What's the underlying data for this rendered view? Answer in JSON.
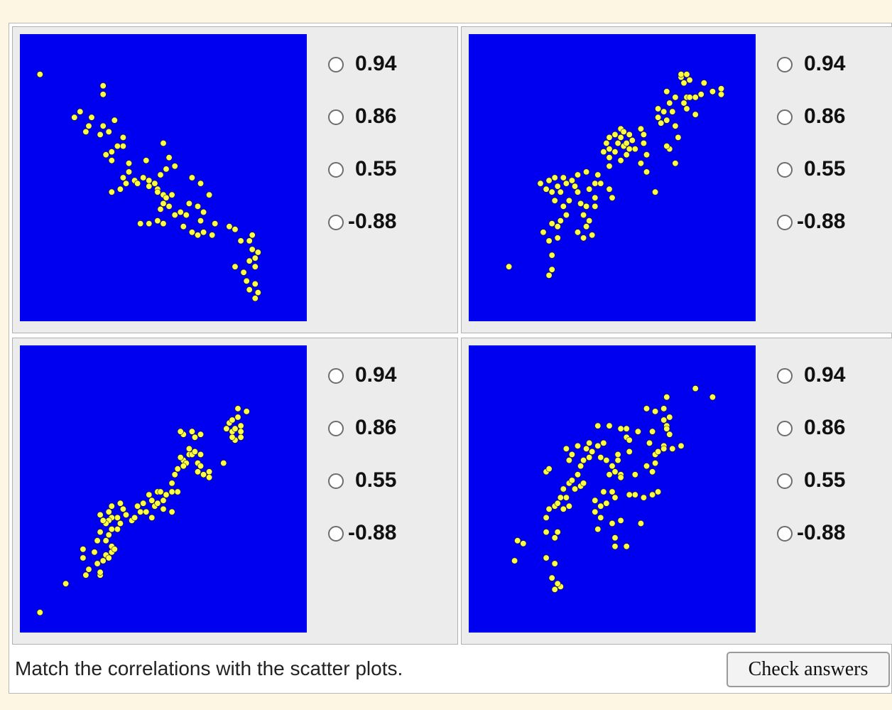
{
  "instructions": "Match the correlations with the scatter plots.",
  "check_button_label": "Check answers",
  "colors": {
    "plot_background": "#0000f0",
    "point_fill": "#ffff44",
    "point_stroke": "#222222"
  },
  "options": [
    "0.94",
    "0.86",
    "0.55",
    "-0.88"
  ],
  "chart_data": [
    {
      "type": "scatter",
      "points": [
        [
          0.07,
          0.86
        ],
        [
          0.29,
          0.82
        ],
        [
          0.29,
          0.79
        ],
        [
          0.21,
          0.73
        ],
        [
          0.19,
          0.71
        ],
        [
          0.25,
          0.71
        ],
        [
          0.29,
          0.68
        ],
        [
          0.33,
          0.7
        ],
        [
          0.24,
          0.68
        ],
        [
          0.31,
          0.66
        ],
        [
          0.28,
          0.65
        ],
        [
          0.23,
          0.66
        ],
        [
          0.36,
          0.64
        ],
        [
          0.36,
          0.61
        ],
        [
          0.34,
          0.61
        ],
        [
          0.32,
          0.59
        ],
        [
          0.5,
          0.62
        ],
        [
          0.3,
          0.58
        ],
        [
          0.32,
          0.56
        ],
        [
          0.38,
          0.55
        ],
        [
          0.44,
          0.56
        ],
        [
          0.52,
          0.57
        ],
        [
          0.54,
          0.54
        ],
        [
          0.51,
          0.53
        ],
        [
          0.36,
          0.5
        ],
        [
          0.43,
          0.5
        ],
        [
          0.38,
          0.52
        ],
        [
          0.4,
          0.49
        ],
        [
          0.37,
          0.48
        ],
        [
          0.41,
          0.48
        ],
        [
          0.45,
          0.49
        ],
        [
          0.47,
          0.48
        ],
        [
          0.49,
          0.51
        ],
        [
          0.45,
          0.47
        ],
        [
          0.48,
          0.46
        ],
        [
          0.6,
          0.5
        ],
        [
          0.63,
          0.48
        ],
        [
          0.32,
          0.45
        ],
        [
          0.35,
          0.46
        ],
        [
          0.5,
          0.44
        ],
        [
          0.48,
          0.45
        ],
        [
          0.51,
          0.43
        ],
        [
          0.53,
          0.44
        ],
        [
          0.5,
          0.41
        ],
        [
          0.52,
          0.4
        ],
        [
          0.49,
          0.39
        ],
        [
          0.54,
          0.37
        ],
        [
          0.56,
          0.38
        ],
        [
          0.58,
          0.37
        ],
        [
          0.59,
          0.41
        ],
        [
          0.62,
          0.4
        ],
        [
          0.63,
          0.35
        ],
        [
          0.66,
          0.44
        ],
        [
          0.64,
          0.38
        ],
        [
          0.48,
          0.35
        ],
        [
          0.42,
          0.34
        ],
        [
          0.45,
          0.34
        ],
        [
          0.5,
          0.34
        ],
        [
          0.57,
          0.33
        ],
        [
          0.6,
          0.31
        ],
        [
          0.64,
          0.31
        ],
        [
          0.62,
          0.3
        ],
        [
          0.67,
          0.3
        ],
        [
          0.68,
          0.34
        ],
        [
          0.73,
          0.33
        ],
        [
          0.75,
          0.32
        ],
        [
          0.77,
          0.28
        ],
        [
          0.81,
          0.3
        ],
        [
          0.8,
          0.28
        ],
        [
          0.81,
          0.25
        ],
        [
          0.8,
          0.21
        ],
        [
          0.82,
          0.19
        ],
        [
          0.82,
          0.22
        ],
        [
          0.83,
          0.24
        ],
        [
          0.75,
          0.19
        ],
        [
          0.78,
          0.17
        ],
        [
          0.79,
          0.14
        ],
        [
          0.8,
          0.11
        ],
        [
          0.82,
          0.13
        ],
        [
          0.83,
          0.1
        ],
        [
          0.82,
          0.08
        ]
      ]
    },
    {
      "type": "scatter",
      "points": [
        [
          0.14,
          0.19
        ],
        [
          0.28,
          0.16
        ],
        [
          0.29,
          0.18
        ],
        [
          0.29,
          0.23
        ],
        [
          0.28,
          0.28
        ],
        [
          0.31,
          0.29
        ],
        [
          0.26,
          0.31
        ],
        [
          0.29,
          0.34
        ],
        [
          0.32,
          0.35
        ],
        [
          0.31,
          0.33
        ],
        [
          0.34,
          0.37
        ],
        [
          0.33,
          0.4
        ],
        [
          0.35,
          0.42
        ],
        [
          0.3,
          0.42
        ],
        [
          0.29,
          0.45
        ],
        [
          0.32,
          0.45
        ],
        [
          0.27,
          0.46
        ],
        [
          0.31,
          0.47
        ],
        [
          0.34,
          0.48
        ],
        [
          0.37,
          0.47
        ],
        [
          0.38,
          0.45
        ],
        [
          0.39,
          0.41
        ],
        [
          0.41,
          0.4
        ],
        [
          0.4,
          0.37
        ],
        [
          0.41,
          0.33
        ],
        [
          0.38,
          0.31
        ],
        [
          0.4,
          0.29
        ],
        [
          0.43,
          0.3
        ],
        [
          0.42,
          0.35
        ],
        [
          0.44,
          0.4
        ],
        [
          0.44,
          0.43
        ],
        [
          0.42,
          0.46
        ],
        [
          0.44,
          0.48
        ],
        [
          0.45,
          0.51
        ],
        [
          0.41,
          0.52
        ],
        [
          0.38,
          0.51
        ],
        [
          0.36,
          0.49
        ],
        [
          0.33,
          0.5
        ],
        [
          0.3,
          0.5
        ],
        [
          0.28,
          0.49
        ],
        [
          0.25,
          0.48
        ],
        [
          0.46,
          0.48
        ],
        [
          0.49,
          0.46
        ],
        [
          0.5,
          0.43
        ],
        [
          0.49,
          0.54
        ],
        [
          0.49,
          0.57
        ],
        [
          0.51,
          0.59
        ],
        [
          0.49,
          0.6
        ],
        [
          0.52,
          0.62
        ],
        [
          0.54,
          0.61
        ],
        [
          0.53,
          0.64
        ],
        [
          0.55,
          0.62
        ],
        [
          0.56,
          0.65
        ],
        [
          0.57,
          0.63
        ],
        [
          0.56,
          0.6
        ],
        [
          0.55,
          0.58
        ],
        [
          0.53,
          0.56
        ],
        [
          0.47,
          0.59
        ],
        [
          0.48,
          0.62
        ],
        [
          0.49,
          0.64
        ],
        [
          0.51,
          0.65
        ],
        [
          0.53,
          0.67
        ],
        [
          0.54,
          0.66
        ],
        [
          0.58,
          0.6
        ],
        [
          0.61,
          0.62
        ],
        [
          0.61,
          0.65
        ],
        [
          0.6,
          0.67
        ],
        [
          0.62,
          0.58
        ],
        [
          0.6,
          0.55
        ],
        [
          0.62,
          0.52
        ],
        [
          0.65,
          0.45
        ],
        [
          0.66,
          0.74
        ],
        [
          0.66,
          0.71
        ],
        [
          0.67,
          0.69
        ],
        [
          0.69,
          0.7
        ],
        [
          0.68,
          0.73
        ],
        [
          0.71,
          0.73
        ],
        [
          0.7,
          0.76
        ],
        [
          0.69,
          0.8
        ],
        [
          0.72,
          0.78
        ],
        [
          0.72,
          0.68
        ],
        [
          0.73,
          0.64
        ],
        [
          0.7,
          0.6
        ],
        [
          0.69,
          0.61
        ],
        [
          0.72,
          0.55
        ],
        [
          0.75,
          0.76
        ],
        [
          0.76,
          0.78
        ],
        [
          0.75,
          0.83
        ],
        [
          0.77,
          0.78
        ],
        [
          0.76,
          0.74
        ],
        [
          0.74,
          0.85
        ],
        [
          0.77,
          0.84
        ],
        [
          0.74,
          0.86
        ],
        [
          0.76,
          0.86
        ],
        [
          0.79,
          0.78
        ],
        [
          0.81,
          0.79
        ],
        [
          0.82,
          0.83
        ],
        [
          0.85,
          0.8
        ],
        [
          0.88,
          0.79
        ],
        [
          0.88,
          0.81
        ],
        [
          0.79,
          0.72
        ]
      ]
    },
    {
      "type": "scatter",
      "points": [
        [
          0.07,
          0.07
        ],
        [
          0.16,
          0.17
        ],
        [
          0.23,
          0.2
        ],
        [
          0.24,
          0.22
        ],
        [
          0.28,
          0.2
        ],
        [
          0.28,
          0.21
        ],
        [
          0.22,
          0.26
        ],
        [
          0.22,
          0.29
        ],
        [
          0.26,
          0.28
        ],
        [
          0.27,
          0.24
        ],
        [
          0.29,
          0.25
        ],
        [
          0.3,
          0.27
        ],
        [
          0.31,
          0.26
        ],
        [
          0.32,
          0.28
        ],
        [
          0.32,
          0.3
        ],
        [
          0.33,
          0.29
        ],
        [
          0.3,
          0.32
        ],
        [
          0.31,
          0.34
        ],
        [
          0.27,
          0.32
        ],
        [
          0.28,
          0.35
        ],
        [
          0.32,
          0.36
        ],
        [
          0.34,
          0.36
        ],
        [
          0.35,
          0.38
        ],
        [
          0.34,
          0.4
        ],
        [
          0.32,
          0.4
        ],
        [
          0.31,
          0.39
        ],
        [
          0.3,
          0.38
        ],
        [
          0.29,
          0.39
        ],
        [
          0.28,
          0.41
        ],
        [
          0.31,
          0.42
        ],
        [
          0.32,
          0.44
        ],
        [
          0.35,
          0.45
        ],
        [
          0.36,
          0.43
        ],
        [
          0.37,
          0.41
        ],
        [
          0.39,
          0.39
        ],
        [
          0.4,
          0.4
        ],
        [
          0.41,
          0.44
        ],
        [
          0.42,
          0.42
        ],
        [
          0.44,
          0.42
        ],
        [
          0.43,
          0.45
        ],
        [
          0.45,
          0.48
        ],
        [
          0.46,
          0.46
        ],
        [
          0.47,
          0.44
        ],
        [
          0.48,
          0.45
        ],
        [
          0.48,
          0.49
        ],
        [
          0.49,
          0.49
        ],
        [
          0.5,
          0.46
        ],
        [
          0.51,
          0.48
        ],
        [
          0.53,
          0.49
        ],
        [
          0.55,
          0.49
        ],
        [
          0.53,
          0.52
        ],
        [
          0.54,
          0.55
        ],
        [
          0.55,
          0.57
        ],
        [
          0.57,
          0.6
        ],
        [
          0.58,
          0.59
        ],
        [
          0.57,
          0.58
        ],
        [
          0.56,
          0.61
        ],
        [
          0.59,
          0.62
        ],
        [
          0.6,
          0.62
        ],
        [
          0.61,
          0.63
        ],
        [
          0.63,
          0.62
        ],
        [
          0.62,
          0.59
        ],
        [
          0.63,
          0.58
        ],
        [
          0.62,
          0.56
        ],
        [
          0.64,
          0.55
        ],
        [
          0.66,
          0.56
        ],
        [
          0.66,
          0.54
        ],
        [
          0.63,
          0.69
        ],
        [
          0.61,
          0.68
        ],
        [
          0.6,
          0.7
        ],
        [
          0.57,
          0.69
        ],
        [
          0.56,
          0.7
        ],
        [
          0.59,
          0.64
        ],
        [
          0.53,
          0.42
        ],
        [
          0.5,
          0.43
        ],
        [
          0.46,
          0.4
        ],
        [
          0.71,
          0.59
        ],
        [
          0.72,
          0.71
        ],
        [
          0.74,
          0.7
        ],
        [
          0.73,
          0.73
        ],
        [
          0.74,
          0.74
        ],
        [
          0.75,
          0.71
        ],
        [
          0.77,
          0.72
        ],
        [
          0.76,
          0.75
        ],
        [
          0.77,
          0.7
        ],
        [
          0.77,
          0.68
        ],
        [
          0.75,
          0.67
        ],
        [
          0.74,
          0.68
        ],
        [
          0.76,
          0.78
        ],
        [
          0.79,
          0.77
        ]
      ]
    },
    {
      "type": "scatter",
      "points": [
        [
          0.17,
          0.32
        ],
        [
          0.16,
          0.25
        ],
        [
          0.19,
          0.31
        ],
        [
          0.27,
          0.26
        ],
        [
          0.3,
          0.24
        ],
        [
          0.29,
          0.19
        ],
        [
          0.32,
          0.16
        ],
        [
          0.31,
          0.17
        ],
        [
          0.3,
          0.15
        ],
        [
          0.27,
          0.35
        ],
        [
          0.3,
          0.33
        ],
        [
          0.31,
          0.35
        ],
        [
          0.27,
          0.4
        ],
        [
          0.28,
          0.43
        ],
        [
          0.3,
          0.44
        ],
        [
          0.31,
          0.45
        ],
        [
          0.33,
          0.43
        ],
        [
          0.35,
          0.44
        ],
        [
          0.34,
          0.47
        ],
        [
          0.32,
          0.47
        ],
        [
          0.33,
          0.5
        ],
        [
          0.35,
          0.52
        ],
        [
          0.36,
          0.53
        ],
        [
          0.37,
          0.5
        ],
        [
          0.39,
          0.51
        ],
        [
          0.38,
          0.55
        ],
        [
          0.39,
          0.58
        ],
        [
          0.4,
          0.6
        ],
        [
          0.42,
          0.61
        ],
        [
          0.41,
          0.64
        ],
        [
          0.43,
          0.63
        ],
        [
          0.42,
          0.66
        ],
        [
          0.38,
          0.65
        ],
        [
          0.36,
          0.62
        ],
        [
          0.35,
          0.6
        ],
        [
          0.27,
          0.56
        ],
        [
          0.28,
          0.57
        ],
        [
          0.34,
          0.64
        ],
        [
          0.4,
          0.52
        ],
        [
          0.44,
          0.46
        ],
        [
          0.44,
          0.42
        ],
        [
          0.45,
          0.36
        ],
        [
          0.46,
          0.4
        ],
        [
          0.46,
          0.44
        ],
        [
          0.48,
          0.45
        ],
        [
          0.47,
          0.49
        ],
        [
          0.5,
          0.49
        ],
        [
          0.51,
          0.47
        ],
        [
          0.49,
          0.55
        ],
        [
          0.51,
          0.56
        ],
        [
          0.53,
          0.55
        ],
        [
          0.53,
          0.54
        ],
        [
          0.5,
          0.58
        ],
        [
          0.52,
          0.6
        ],
        [
          0.52,
          0.62
        ],
        [
          0.48,
          0.6
        ],
        [
          0.46,
          0.61
        ],
        [
          0.45,
          0.65
        ],
        [
          0.47,
          0.66
        ],
        [
          0.49,
          0.72
        ],
        [
          0.45,
          0.72
        ],
        [
          0.53,
          0.71
        ],
        [
          0.55,
          0.68
        ],
        [
          0.55,
          0.71
        ],
        [
          0.56,
          0.67
        ],
        [
          0.56,
          0.63
        ],
        [
          0.58,
          0.55
        ],
        [
          0.58,
          0.48
        ],
        [
          0.6,
          0.38
        ],
        [
          0.53,
          0.39
        ],
        [
          0.5,
          0.38
        ],
        [
          0.51,
          0.3
        ],
        [
          0.51,
          0.33
        ],
        [
          0.55,
          0.3
        ],
        [
          0.56,
          0.48
        ],
        [
          0.61,
          0.47
        ],
        [
          0.64,
          0.48
        ],
        [
          0.62,
          0.58
        ],
        [
          0.64,
          0.56
        ],
        [
          0.65,
          0.59
        ],
        [
          0.65,
          0.62
        ],
        [
          0.66,
          0.63
        ],
        [
          0.66,
          0.49
        ],
        [
          0.63,
          0.66
        ],
        [
          0.64,
          0.7
        ],
        [
          0.68,
          0.65
        ],
        [
          0.68,
          0.64
        ],
        [
          0.7,
          0.69
        ],
        [
          0.69,
          0.72
        ],
        [
          0.68,
          0.74
        ],
        [
          0.69,
          0.71
        ],
        [
          0.7,
          0.75
        ],
        [
          0.68,
          0.78
        ],
        [
          0.65,
          0.77
        ],
        [
          0.62,
          0.78
        ],
        [
          0.59,
          0.7
        ],
        [
          0.69,
          0.82
        ],
        [
          0.71,
          0.64
        ],
        [
          0.74,
          0.65
        ],
        [
          0.79,
          0.85
        ],
        [
          0.85,
          0.82
        ]
      ]
    }
  ]
}
